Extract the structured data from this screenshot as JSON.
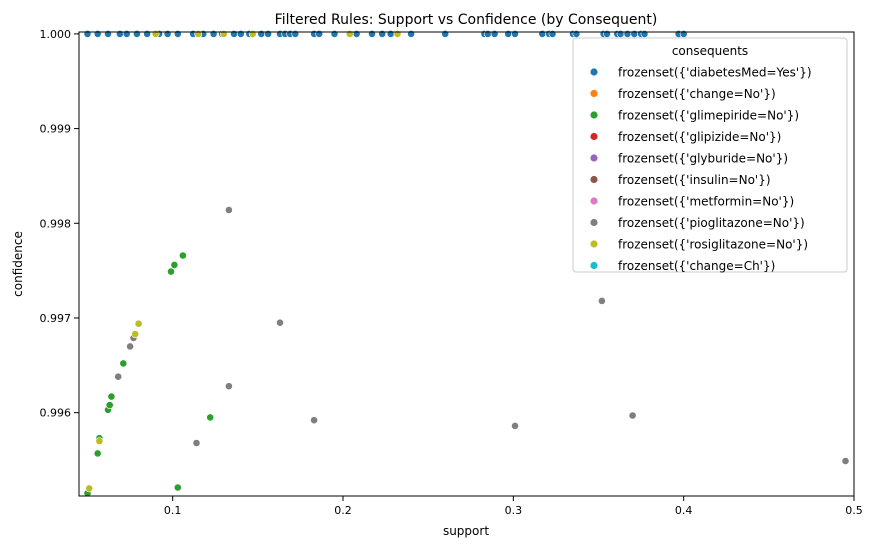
{
  "chart_data": {
    "type": "scatter",
    "title": "Filtered Rules: Support vs Confidence (by Consequent)",
    "xlabel": "support",
    "ylabel": "confidence",
    "xlim": [
      0.045,
      0.5
    ],
    "ylim": [
      0.99512,
      1.00002
    ],
    "xticks": [
      {
        "value": 0.1,
        "label": "0.1"
      },
      {
        "value": 0.2,
        "label": "0.2"
      },
      {
        "value": 0.3,
        "label": "0.3"
      },
      {
        "value": 0.4,
        "label": "0.4"
      },
      {
        "value": 0.5,
        "label": "0.5"
      }
    ],
    "yticks": [
      {
        "value": 0.996,
        "label": "0.996"
      },
      {
        "value": 0.997,
        "label": "0.997"
      },
      {
        "value": 0.998,
        "label": "0.998"
      },
      {
        "value": 0.999,
        "label": "0.999"
      },
      {
        "value": 1.0,
        "label": "1.000"
      }
    ],
    "grid": false,
    "legend": {
      "title": "consequents",
      "placement": "top-right"
    },
    "series": [
      {
        "name": "frozenset({'diabetesMed=Yes'})",
        "color": "#1f77b4",
        "points": [
          [
            0.05,
            1.0
          ],
          [
            0.056,
            1.0
          ],
          [
            0.062,
            1.0
          ],
          [
            0.069,
            1.0
          ],
          [
            0.073,
            1.0
          ],
          [
            0.079,
            1.0
          ],
          [
            0.085,
            1.0
          ],
          [
            0.092,
            1.0
          ],
          [
            0.097,
            1.0
          ],
          [
            0.103,
            1.0
          ],
          [
            0.112,
            1.0
          ],
          [
            0.118,
            1.0
          ],
          [
            0.124,
            1.0
          ],
          [
            0.129,
            1.0
          ],
          [
            0.136,
            1.0
          ],
          [
            0.14,
            1.0
          ],
          [
            0.145,
            1.0
          ],
          [
            0.152,
            1.0
          ],
          [
            0.156,
            1.0
          ],
          [
            0.163,
            1.0
          ],
          [
            0.166,
            1.0
          ],
          [
            0.169,
            1.0
          ],
          [
            0.172,
            1.0
          ],
          [
            0.183,
            1.0
          ],
          [
            0.186,
            1.0
          ],
          [
            0.195,
            1.0
          ],
          [
            0.208,
            1.0
          ],
          [
            0.217,
            1.0
          ],
          [
            0.223,
            1.0
          ],
          [
            0.228,
            1.0
          ],
          [
            0.24,
            1.0
          ],
          [
            0.26,
            1.0
          ],
          [
            0.283,
            1.0
          ],
          [
            0.285,
            1.0
          ],
          [
            0.289,
            1.0
          ],
          [
            0.297,
            1.0
          ],
          [
            0.301,
            1.0
          ],
          [
            0.317,
            1.0
          ],
          [
            0.321,
            1.0
          ],
          [
            0.323,
            1.0
          ],
          [
            0.335,
            1.0
          ],
          [
            0.337,
            1.0
          ],
          [
            0.353,
            1.0
          ],
          [
            0.355,
            1.0
          ],
          [
            0.361,
            1.0
          ],
          [
            0.363,
            1.0
          ],
          [
            0.367,
            1.0
          ],
          [
            0.371,
            1.0
          ],
          [
            0.375,
            1.0
          ],
          [
            0.377,
            1.0
          ],
          [
            0.397,
            1.0
          ],
          [
            0.4,
            1.0
          ]
        ]
      },
      {
        "name": "frozenset({'change=No'})",
        "color": "#ff7f0e",
        "points": []
      },
      {
        "name": "frozenset({'glimepiride=No'})",
        "color": "#2ca02c",
        "points": [
          [
            0.05,
            0.99515
          ],
          [
            0.056,
            0.99557
          ],
          [
            0.057,
            0.99573
          ],
          [
            0.062,
            0.99603
          ],
          [
            0.063,
            0.99608
          ],
          [
            0.064,
            0.99617
          ],
          [
            0.071,
            0.99652
          ],
          [
            0.099,
            0.99749
          ],
          [
            0.101,
            0.99756
          ],
          [
            0.106,
            0.99766
          ],
          [
            0.103,
            0.99521
          ],
          [
            0.122,
            0.99595
          ]
        ]
      },
      {
        "name": "frozenset({'glipizide=No'})",
        "color": "#d62728",
        "points": []
      },
      {
        "name": "frozenset({'glyburide=No'})",
        "color": "#9467bd",
        "points": []
      },
      {
        "name": "frozenset({'insulin=No'})",
        "color": "#8c564b",
        "points": []
      },
      {
        "name": "frozenset({'metformin=No'})",
        "color": "#e377c2",
        "points": []
      },
      {
        "name": "frozenset({'pioglitazone=No'})",
        "color": "#7f7f7f",
        "points": [
          [
            0.068,
            0.99638
          ],
          [
            0.075,
            0.9967
          ],
          [
            0.077,
            0.99679
          ],
          [
            0.133,
            0.99814
          ],
          [
            0.163,
            0.99695
          ],
          [
            0.133,
            0.99628
          ],
          [
            0.114,
            0.99568
          ],
          [
            0.183,
            0.99592
          ],
          [
            0.301,
            0.99586
          ],
          [
            0.352,
            0.99718
          ],
          [
            0.37,
            0.99597
          ],
          [
            0.495,
            0.99549
          ]
        ]
      },
      {
        "name": "frozenset({'rosiglitazone=No'})",
        "color": "#bcbd22",
        "points": [
          [
            0.051,
            0.9952
          ],
          [
            0.057,
            0.9957
          ],
          [
            0.078,
            0.99683
          ],
          [
            0.08,
            0.99694
          ],
          [
            0.09,
            1.0
          ],
          [
            0.115,
            1.0
          ],
          [
            0.13,
            1.0
          ],
          [
            0.147,
            1.0
          ],
          [
            0.232,
            1.0
          ],
          [
            0.204,
            1.0
          ]
        ]
      },
      {
        "name": "frozenset({'change=Ch'})",
        "color": "#17becf",
        "points": []
      }
    ]
  }
}
